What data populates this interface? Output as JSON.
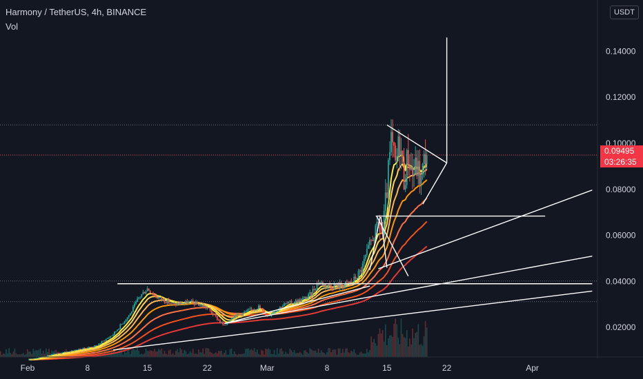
{
  "header": {
    "title": "Harmony / TetherUS, 4h, BINANCE",
    "volume_label": "Vol",
    "currency": "USDT"
  },
  "price_tag": {
    "price": "0.09495",
    "countdown": "03:26:35",
    "color": "#f23645"
  },
  "colors": {
    "background": "#131722",
    "bull": "#26a69a",
    "bear": "#ef5350",
    "drawing": "#ffffff",
    "ribbon": [
      "#ffeb3b",
      "#ffd54f",
      "#ffb74d",
      "#ff9800",
      "#ff7043",
      "#f4511e",
      "#e53935"
    ]
  },
  "chart_data": {
    "type": "candlestick",
    "title": "Harmony / TetherUS, 4h, BINANCE",
    "x_ticks": [
      "Feb",
      "8",
      "15",
      "22",
      "Mar",
      "8",
      "15",
      "22",
      "Apr"
    ],
    "y_ticks": [
      "0.02000",
      "0.04000",
      "0.06000",
      "0.08000",
      "0.10000",
      "0.12000",
      "0.14000"
    ],
    "ylim": [
      0.0,
      0.152
    ],
    "grid": false,
    "last_price": 0.09495,
    "series": [
      {
        "type": "price-path",
        "values_by_day": [
          [
            0,
            0.006
          ],
          [
            4,
            0.009
          ],
          [
            8,
            0.012
          ],
          [
            10,
            0.017
          ],
          [
            12,
            0.026
          ],
          [
            13,
            0.033
          ],
          [
            14,
            0.037
          ],
          [
            15,
            0.0335
          ],
          [
            17,
            0.03
          ],
          [
            19,
            0.031
          ],
          [
            20,
            0.03
          ],
          [
            21,
            0.0285
          ],
          [
            22,
            0.0245
          ],
          [
            23,
            0.0205
          ],
          [
            24,
            0.025
          ],
          [
            25,
            0.026
          ],
          [
            27,
            0.029
          ],
          [
            28,
            0.025
          ],
          [
            30,
            0.03
          ],
          [
            32,
            0.032
          ],
          [
            33,
            0.034
          ],
          [
            34,
            0.04
          ],
          [
            35,
            0.038
          ],
          [
            37,
            0.0385
          ],
          [
            38,
            0.04
          ],
          [
            39,
            0.045
          ],
          [
            40,
            0.056
          ],
          [
            41,
            0.065
          ],
          [
            41.5,
            0.06
          ],
          [
            42,
            0.08
          ],
          [
            42.5,
            0.1
          ],
          [
            43,
            0.09
          ],
          [
            43.5,
            0.102
          ],
          [
            44,
            0.085
          ],
          [
            44.5,
            0.095
          ],
          [
            45,
            0.087
          ],
          [
            45.5,
            0.09
          ],
          [
            46,
            0.084
          ],
          [
            46.5,
            0.096
          ],
          [
            46.8,
            0.095
          ]
        ]
      }
    ],
    "ribbon_lengths": [
      8,
      13,
      21,
      34,
      55,
      89,
      144
    ],
    "horizontal_lines": [
      {
        "price": 0.108,
        "style": "dotted"
      },
      {
        "price": 0.0949,
        "style": "dotted-red"
      },
      {
        "price": 0.0402,
        "style": "dotted"
      },
      {
        "price": 0.0312,
        "style": "dotted"
      }
    ],
    "drawings": {
      "lines": [
        [
          [
            10,
            0.0102
          ],
          [
            66,
            0.0358
          ]
        ],
        [
          [
            23,
            0.0217
          ],
          [
            66,
            0.051
          ]
        ],
        [
          [
            23,
            0.0217
          ],
          [
            40,
            0.038
          ]
        ],
        [
          [
            41,
            0.0455
          ],
          [
            66,
            0.0797
          ]
        ],
        [
          [
            10.5,
            0.039
          ],
          [
            66,
            0.039
          ]
        ],
        [
          [
            40.7,
            0.0684
          ],
          [
            60.5,
            0.0684
          ]
        ],
        [
          [
            40.8,
            0.0684
          ],
          [
            44.5,
            0.0423
          ]
        ],
        [
          [
            42,
            0.108
          ],
          [
            49,
            0.0915
          ]
        ],
        [
          [
            46.2,
            0.0736
          ],
          [
            49,
            0.0915
          ]
        ],
        [
          [
            49,
            0.0915
          ],
          [
            49,
            0.146
          ]
        ],
        [
          [
            41.3,
            0.068
          ],
          [
            42,
            0.046
          ]
        ],
        [
          [
            40,
            0.045
          ],
          [
            41.2,
            0.068
          ]
        ]
      ],
      "range_box": {
        "x0": 40.7,
        "x1": 41.6,
        "y0": 0.045,
        "y1": 0.0684
      }
    }
  }
}
